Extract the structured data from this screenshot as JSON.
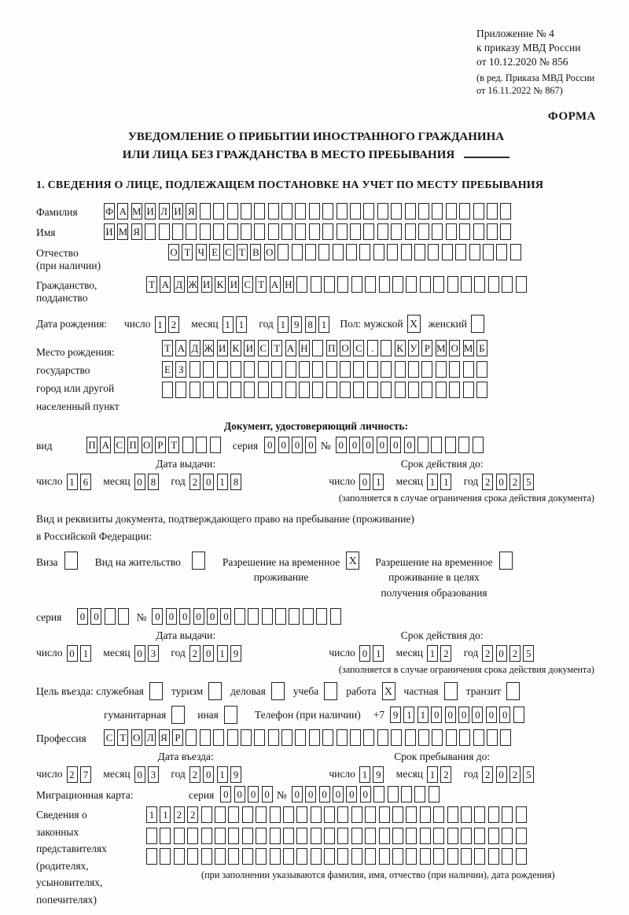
{
  "labels": {
    "day": "число",
    "month": "месяц",
    "year": "год"
  },
  "header": {
    "line1": "Приложение № 4",
    "line2": "к приказу МВД России",
    "line3": "от 10.12.2020 № 856",
    "line4": "(в ред. Приказа МВД России",
    "line5": "от 16.11.2022 № 867)",
    "form_label": "ФОРМА"
  },
  "title": {
    "line1": "УВЕДОМЛЕНИЕ О ПРИБЫТИИ ИНОСТРАННОГО ГРАЖДАНИНА",
    "line2": "ИЛИ ЛИЦА БЕЗ ГРАЖДАНСТВА В МЕСТО ПРЕБЫВАНИЯ"
  },
  "section1": {
    "title": "1. СВЕДЕНИЯ О ЛИЦЕ, ПОДЛЕЖАЩЕМ ПОСТАНОВКЕ НА УЧЕТ ПО МЕСТУ ПРЕБЫВАНИЯ"
  },
  "person": {
    "surname": {
      "label": "Фамилия",
      "value": "ФАМИЛИЯ",
      "cells": 30
    },
    "given_name": {
      "label": "Имя",
      "value": "ИМЯ",
      "cells": 30
    },
    "patronymic": {
      "label1": "Отчество",
      "label2": "(при наличии)",
      "value": "ОТЧЕСТВО",
      "cells": 26
    },
    "citizenship": {
      "label1": "Гражданство,",
      "label2": "подданство",
      "value": "ТАДЖИКИСТАН",
      "cells": 28
    },
    "birth": {
      "label": "Дата рождения:",
      "date": {
        "day": "12",
        "month": "11",
        "year": "1981"
      }
    },
    "sex": {
      "label": "Пол: мужской",
      "male_mark": "X",
      "female_label": "женский",
      "female_mark": ""
    },
    "birth_place": {
      "label1": "Место рождения:",
      "label2": "государство",
      "label3": "город или другой",
      "label4": "населенный пункт",
      "row1": {
        "value": "ТАДЖИКИСТАН ПОС. КУРМОМБ",
        "cells": 24
      },
      "row2": {
        "value": "ЕЗ",
        "cells": 24
      },
      "row3": {
        "value": "",
        "cells": 24
      }
    }
  },
  "identity_doc": {
    "header": "Документ, удостоверяющий личность:",
    "kind_label": "вид",
    "kind": {
      "value": "ПАСПОРТ",
      "cells": 10
    },
    "series_label": "серия",
    "series": {
      "value": "0000",
      "cells": 4
    },
    "number_label": "№",
    "number": {
      "value": "000000",
      "cells": 11
    },
    "issue_header": "Дата выдачи:",
    "issue_date": {
      "day": "16",
      "month": "08",
      "year": "2018"
    },
    "expiry_header": "Срок действия до:",
    "expiry_date": {
      "day": "01",
      "month": "11",
      "year": "2025"
    },
    "expiry_note": "(заполняется в случае ограничения срока действия документа)"
  },
  "residence_doc": {
    "intro1": "Вид и реквизиты документа, подтверждающего право на пребывание (проживание)",
    "intro2": "в Российской Федерации:",
    "visa_label": "Виза",
    "visa_mark": "",
    "residence_permit_label": "Вид на жительство",
    "residence_permit_mark": "",
    "temp_permit_label1": "Разрешение на временное",
    "temp_permit_label2": "проживание",
    "temp_permit_mark": "X",
    "edu_permit_label1": "Разрешение на временное",
    "edu_permit_label2": "проживание в целях",
    "edu_permit_label3": "получения образования",
    "edu_permit_mark": "",
    "series_label": "серия",
    "series": {
      "value": "00",
      "cells": 4
    },
    "number_label": "№",
    "number": {
      "value": "000000",
      "cells": 14
    },
    "issue_header": "Дата выдачи:",
    "issue_date": {
      "day": "01",
      "month": "03",
      "year": "2019"
    },
    "expiry_header": "Срок действия до:",
    "expiry_date": {
      "day": "01",
      "month": "12",
      "year": "2025"
    },
    "expiry_note": "(заполняется в случае ограничения срока действия документа)"
  },
  "purpose": {
    "label": "Цель въезда: служебная",
    "official_mark": "",
    "tourism": {
      "label": "туризм",
      "mark": ""
    },
    "business": {
      "label": "деловая",
      "mark": ""
    },
    "study": {
      "label": "учеба",
      "mark": ""
    },
    "work": {
      "label": "работа",
      "mark": "X"
    },
    "private": {
      "label": "частная",
      "mark": ""
    },
    "transit": {
      "label": "транзит",
      "mark": ""
    },
    "humanitarian": {
      "label": "гуманитарная",
      "mark": ""
    },
    "other": {
      "label": "иная",
      "mark": ""
    }
  },
  "phone": {
    "label": "Телефон (при наличии)",
    "prefix": "+7",
    "number": {
      "value": "911000000",
      "cells": 10
    }
  },
  "profession": {
    "label": "Профессия",
    "value": "СТОЛЯР",
    "cells": 30
  },
  "entry": {
    "header": "Дата въезда:",
    "date": {
      "day": "27",
      "month": "03",
      "year": "2019"
    }
  },
  "stay": {
    "header": "Срок пребывания до:",
    "date": {
      "day": "19",
      "month": "12",
      "year": "2025"
    }
  },
  "migration_card": {
    "label": "Миграционная карта:",
    "series_label": "серия",
    "series": {
      "value": "0000",
      "cells": 4
    },
    "number_label": "№",
    "number": {
      "value": "000000",
      "cells": 11
    }
  },
  "legal_representatives": {
    "label1": "Сведения о",
    "label2": "законных",
    "label3": "представителях",
    "label4": "(родителях,",
    "label5": "усыновителях,",
    "label6": "попечителях)",
    "row1": {
      "value": "1122",
      "cells": 28
    },
    "row2": {
      "value": "",
      "cells": 28
    },
    "row3": {
      "value": "",
      "cells": 28
    },
    "note": "(при заполнении указываются фамилия, имя, отчество (при наличии), дата рождения)"
  }
}
